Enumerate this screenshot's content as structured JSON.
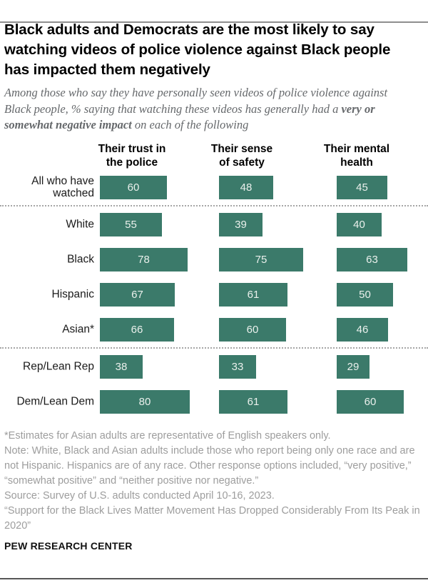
{
  "header": {
    "title": "Black adults and Democrats are the most likely to say watching videos of police violence against Black people has impacted them negatively",
    "subtitle_prefix": "Among those who say they have personally seen videos of police violence against Black people, % saying that watching these videos has generally had a ",
    "subtitle_bold": "very or somewhat negative impact",
    "subtitle_suffix": " on each of the following"
  },
  "chart_data": {
    "type": "bar",
    "orientation": "horizontal",
    "unit": "%",
    "xlim": [
      0,
      100
    ],
    "columns": [
      "Their trust in the police",
      "Their sense of safety",
      "Their mental health"
    ],
    "column_lines": [
      [
        "Their trust in",
        "the police"
      ],
      [
        "Their sense",
        "of safety"
      ],
      [
        "Their mental",
        "health"
      ]
    ],
    "rows": [
      {
        "label": "All who have watched",
        "values": [
          60,
          48,
          45
        ]
      },
      {
        "label": "White",
        "values": [
          55,
          39,
          40
        ]
      },
      {
        "label": "Black",
        "values": [
          78,
          75,
          63
        ]
      },
      {
        "label": "Hispanic",
        "values": [
          67,
          61,
          50
        ]
      },
      {
        "label": "Asian*",
        "values": [
          66,
          60,
          46
        ]
      },
      {
        "label": "Rep/Lean Rep",
        "values": [
          38,
          33,
          29
        ]
      },
      {
        "label": "Dem/Lean Dem",
        "values": [
          80,
          61,
          60
        ]
      }
    ],
    "sections": [
      [
        0
      ],
      [
        1,
        2,
        3,
        4
      ],
      [
        5,
        6
      ]
    ],
    "bar_color": "#3B7A6A",
    "value_label_color": "#EAF0EC"
  },
  "notes": {
    "lines": [
      "*Estimates for Asian adults are representative of English speakers only.",
      "Note: White, Black and Asian adults include those who report being only one race and are not Hispanic. Hispanics are of any race. Other response options included, “very positive,” “somewhat positive” and “neither positive nor negative.”",
      "Source: Survey of U.S. adults conducted April 10-16, 2023.",
      "“Support for the Black Lives Matter Movement Has Dropped Considerably From Its Peak in 2020”"
    ]
  },
  "footer": {
    "brand": "PEW RESEARCH CENTER"
  }
}
